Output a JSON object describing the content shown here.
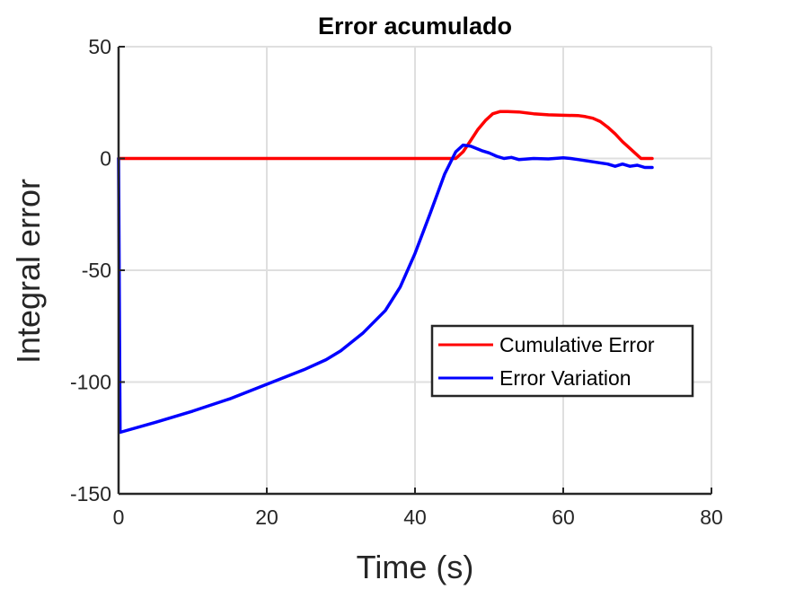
{
  "chart_data": {
    "type": "line",
    "title": "Error acumulado",
    "xlabel": "Time (s)",
    "ylabel": "Integral error",
    "xlim": [
      0,
      80
    ],
    "ylim": [
      -150,
      50
    ],
    "xticks": [
      0,
      20,
      40,
      60,
      80
    ],
    "yticks": [
      -150,
      -100,
      -50,
      0,
      50
    ],
    "xtick_labels": [
      "0",
      "20",
      "40",
      "60",
      "80"
    ],
    "ytick_labels": [
      "-150",
      "-100",
      "-50",
      "0",
      "50"
    ],
    "grid": true,
    "legend_position": "lower-right",
    "series": [
      {
        "name": "Cumulative Error",
        "color": "#ff0000",
        "x": [
          0,
          10,
          20,
          30,
          40,
          45.5,
          46.5,
          47.5,
          48.5,
          49.5,
          50.5,
          51.5,
          52.5,
          54,
          56,
          58,
          60,
          62,
          63,
          64,
          65,
          66,
          67,
          68,
          69,
          70,
          70.5,
          72
        ],
        "y": [
          0,
          0,
          0,
          0,
          0,
          0,
          3,
          8,
          13,
          17,
          20,
          21,
          21,
          20.8,
          20,
          19.5,
          19.3,
          19.2,
          18.7,
          18,
          16.5,
          14,
          11,
          7.5,
          4.5,
          1.5,
          0,
          0
        ]
      },
      {
        "name": "Error Variation",
        "color": "#0000ff",
        "x": [
          0,
          0.2,
          5,
          10,
          15,
          20,
          25,
          28,
          30,
          33,
          36,
          38,
          40,
          42,
          44,
          45.5,
          46.5,
          47.5,
          49,
          50,
          51,
          52,
          53,
          54,
          56,
          58,
          60,
          61,
          62,
          64,
          66,
          67,
          68,
          69,
          70,
          71,
          72
        ],
        "y": [
          0,
          -122.5,
          -118,
          -113,
          -107.5,
          -101,
          -94.5,
          -90,
          -86,
          -78,
          -68,
          -57.5,
          -42.5,
          -25,
          -7,
          3,
          6,
          5.5,
          3.5,
          2.5,
          1,
          0,
          0.5,
          -0.5,
          0,
          -0.2,
          0.3,
          0,
          -0.5,
          -1.5,
          -2.5,
          -3.5,
          -2.5,
          -3.5,
          -3,
          -4,
          -4
        ]
      }
    ]
  }
}
